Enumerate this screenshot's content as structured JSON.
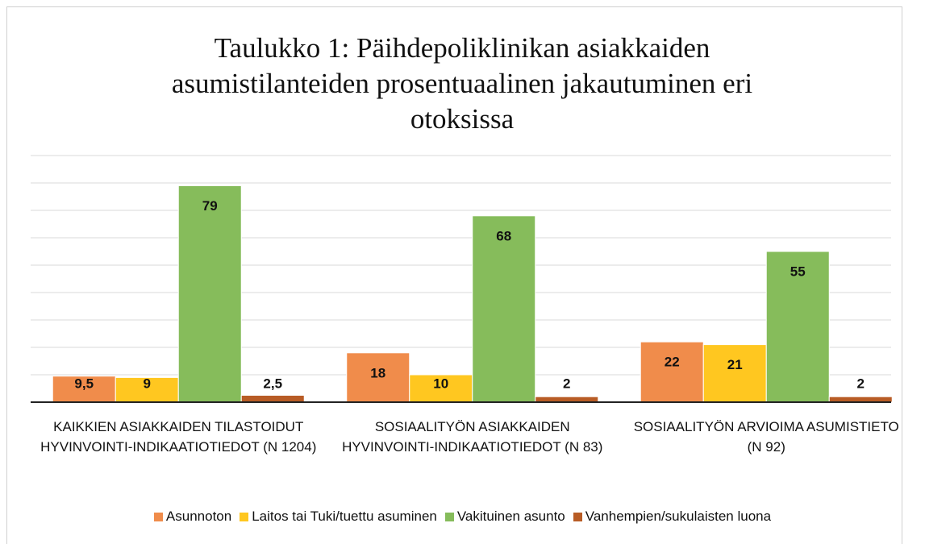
{
  "chart_data": {
    "type": "bar",
    "title": "Taulukko 1: Päihdepoliklinikan asiakkaiden asumistilanteiden prosentuaalinen jakautuminen eri otoksissa",
    "categories": [
      "KAIKKIEN ASIAKKAIDEN TILASTOIDUT HYVINVOINTI-INDIKAATIOTIEDOT (N 1204)",
      "SOSIAALITYÖN ASIAKKAIDEN HYVINVOINTI-INDIKAATIOTIEDOT (N 83)",
      "SOSIAALITYÖN ARVIOIMA ASUMISTIETO (N 92)"
    ],
    "series": [
      {
        "name": "Asunnoton",
        "color": "#f08c4b",
        "values": [
          9.5,
          18,
          22
        ],
        "value_labels": [
          "9,5",
          "18",
          "22"
        ]
      },
      {
        "name": "Laitos tai Tuki/tuettu asuminen",
        "color": "#ffc720",
        "values": [
          9,
          10,
          21
        ],
        "value_labels": [
          "9",
          "10",
          "21"
        ]
      },
      {
        "name": "Vakituinen asunto",
        "color": "#86bc5b",
        "values": [
          79,
          68,
          55
        ],
        "value_labels": [
          "79",
          "68",
          "55"
        ]
      },
      {
        "name": "Vanhempien/sukulaisten luona",
        "color": "#b85c25",
        "values": [
          2.5,
          2,
          2
        ],
        "value_labels": [
          "2,5",
          "2",
          "2"
        ]
      }
    ],
    "ylim": [
      0,
      90
    ],
    "yticks": [
      0,
      10,
      20,
      30,
      40,
      50,
      60,
      70,
      80,
      90
    ],
    "grid": true,
    "legend": "bottom"
  }
}
